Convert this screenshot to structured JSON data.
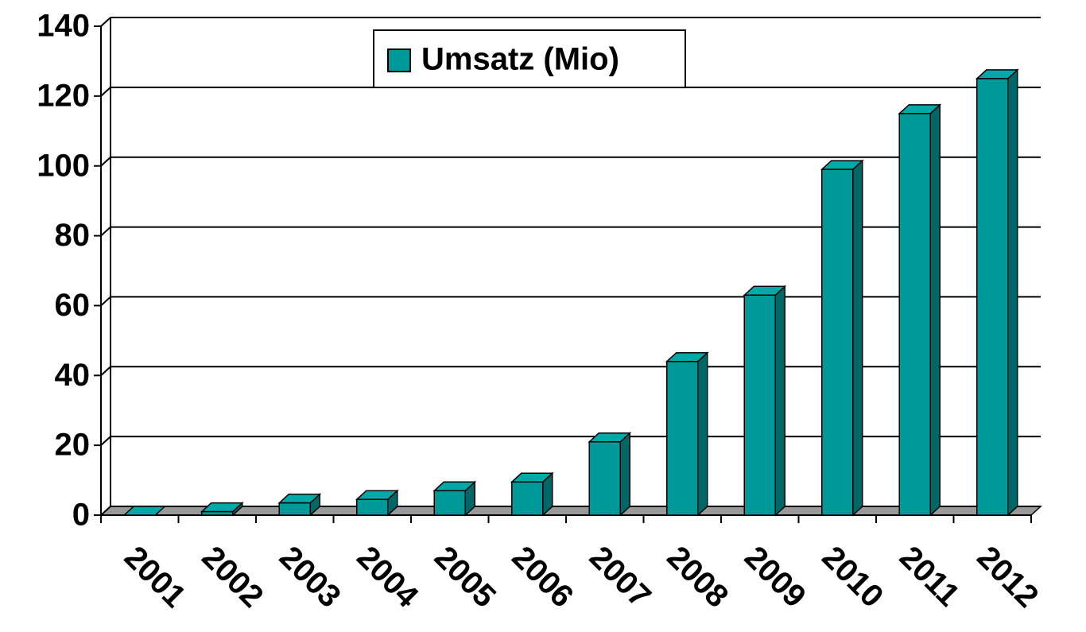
{
  "chart_data": {
    "type": "bar3d",
    "categories": [
      "2001",
      "2002",
      "2003",
      "2004",
      "2005",
      "2006",
      "2007",
      "2008",
      "2009",
      "2010",
      "2011",
      "2012"
    ],
    "series": [
      {
        "name": "Umsatz (Mio)",
        "color": "#009999",
        "values": [
          0,
          1,
          3.5,
          4.5,
          7,
          9.5,
          21,
          44,
          63,
          99,
          115,
          125
        ]
      }
    ],
    "ylim": [
      0,
      140
    ],
    "yticks": [
      0,
      20,
      40,
      60,
      80,
      100,
      120,
      140
    ],
    "grid": true,
    "legend": "top"
  }
}
